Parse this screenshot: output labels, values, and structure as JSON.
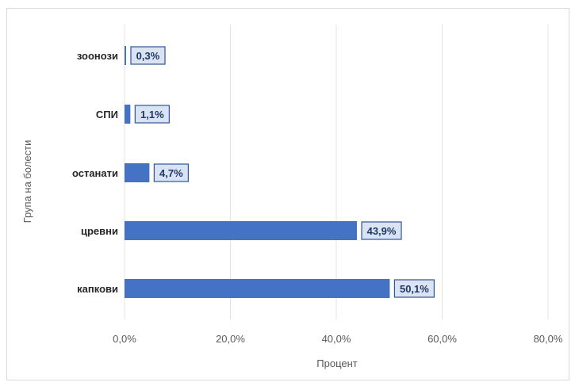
{
  "chart_data": {
    "type": "bar",
    "orientation": "horizontal",
    "categories": [
      "зоонози",
      "СПИ",
      "останати",
      "цревни",
      "капкови"
    ],
    "values": [
      0.3,
      1.1,
      4.7,
      43.9,
      50.1
    ],
    "data_labels": [
      "0,3%",
      "1,1%",
      "4,7%",
      "43,9%",
      "50,1%"
    ],
    "xlabel": "Процент",
    "ylabel": "Група на болести",
    "xlim": [
      0,
      80
    ],
    "xticks": [
      0,
      20,
      40,
      60,
      80
    ],
    "xtick_labels": [
      "0,0%",
      "20,0%",
      "40,0%",
      "60,0%",
      "80,0%"
    ],
    "grid": "vertical",
    "legend": "none",
    "colors": {
      "bar": "#4472c4",
      "label_fill": "#dae3f3",
      "label_border": "#2f5597"
    }
  }
}
